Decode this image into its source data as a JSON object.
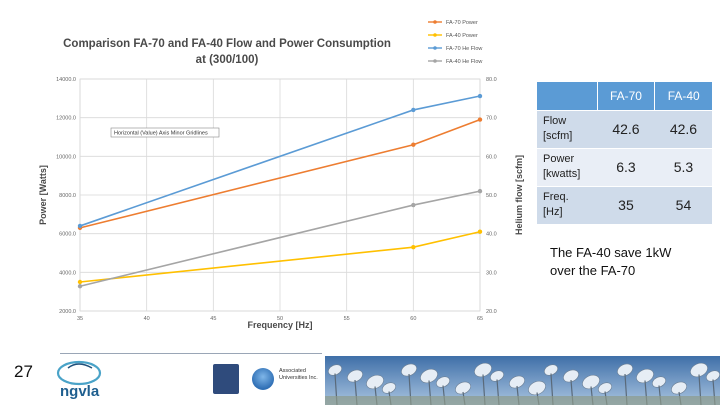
{
  "chart_data": {
    "type": "line",
    "title": "Comparison FA-70 and FA-40 Flow and Power Consumption",
    "subtitle": "at (300/100)",
    "xlabel": "Frequency [Hz]",
    "ylabel": "Power [Watts]",
    "y2label": "Helium flow [scfm]",
    "xlim": [
      35,
      65
    ],
    "ylim": [
      2000,
      14000
    ],
    "y2lim": [
      20,
      80
    ],
    "x_ticks": [
      "35",
      "40",
      "45",
      "50",
      "55",
      "60",
      "65"
    ],
    "y_ticks": [
      "2000.0",
      "4000.0",
      "6000.0",
      "8000.0",
      "10000.0",
      "12000.0",
      "14000.0"
    ],
    "y2_ticks": [
      "20.0",
      "30.0",
      "40.0",
      "50.0",
      "60.0",
      "70.0",
      "80.0"
    ],
    "annotation": "Horizontal (Value) Axis Minor Gridlines",
    "grid": true,
    "legend_position": "top-right",
    "series": [
      {
        "name": "FA-70 Power",
        "axis": "left",
        "color": "#ed7d31",
        "x": [
          35,
          60,
          65
        ],
        "values": [
          6300,
          10600,
          11900
        ]
      },
      {
        "name": "FA-40 Power",
        "axis": "left",
        "color": "#ffc000",
        "x": [
          35,
          60,
          65
        ],
        "values": [
          3500,
          5300,
          6100
        ]
      },
      {
        "name": "FA-70 He Flow",
        "axis": "right",
        "color": "#5b9bd5",
        "x": [
          35,
          60,
          65
        ],
        "values": [
          42,
          72,
          75.6
        ]
      },
      {
        "name": "FA-40 He Flow",
        "axis": "right",
        "color": "#a5a5a5",
        "x": [
          35,
          60,
          65
        ],
        "values": [
          26.4,
          47.4,
          51
        ]
      }
    ]
  },
  "table": {
    "headers": [
      "",
      "FA-70",
      "FA-40"
    ],
    "rows": [
      {
        "label_line1": "Flow",
        "label_line2": "[scfm]",
        "fa70": "42.6",
        "fa40": "42.6"
      },
      {
        "label_line1": "Power",
        "label_line2": "[kwatts]",
        "fa70": "6.3",
        "fa40": "5.3"
      },
      {
        "label_line1": "Freq.",
        "label_line2": "[Hz]",
        "fa70": "35",
        "fa40": "54"
      }
    ]
  },
  "note": {
    "line1": "The FA-40 save 1kW",
    "line2": "over the FA-70"
  },
  "footer": {
    "slide_number": "27",
    "logo_text": "ngvla",
    "aui_text_line1": "Associated",
    "aui_text_line2": "Universities Inc."
  },
  "colors": {
    "accent": "#5b9bd5",
    "fa70_power": "#ed7d31",
    "fa40_power": "#ffc000",
    "fa70_flow": "#5b9bd5",
    "fa40_flow": "#a5a5a5"
  }
}
